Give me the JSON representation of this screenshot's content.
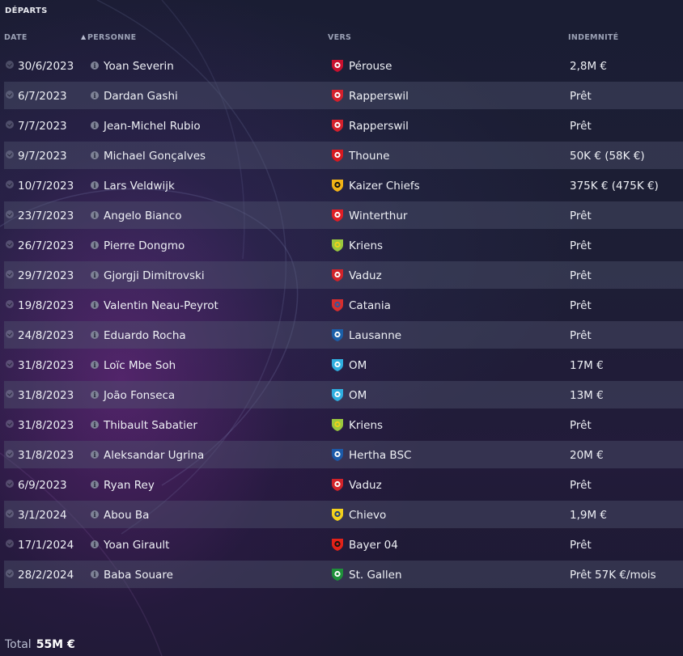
{
  "section_title": "DÉPARTS",
  "columns": {
    "date": "DATE",
    "person": "PERSONNE",
    "to": "VERS",
    "fee": "INDEMNITÉ"
  },
  "transfers": [
    {
      "date": "30/6/2023",
      "player": "Yoan Severin",
      "club": "Pérouse",
      "fee": "2,8M €",
      "crest_icon": "perugia-crest-icon",
      "crest_colors": [
        "#c8102e",
        "#ffffff"
      ]
    },
    {
      "date": "6/7/2023",
      "player": "Dardan Gashi",
      "club": "Rapperswil",
      "fee": "Prêt",
      "crest_icon": "rapperswil-crest-icon",
      "crest_colors": [
        "#d4202c",
        "#ffffff"
      ]
    },
    {
      "date": "7/7/2023",
      "player": "Jean-Michel Rubio",
      "club": "Rapperswil",
      "fee": "Prêt",
      "crest_icon": "rapperswil-crest-icon",
      "crest_colors": [
        "#d4202c",
        "#ffffff"
      ]
    },
    {
      "date": "9/7/2023",
      "player": "Michael Gonçalves",
      "club": "Thoune",
      "fee": "50K € (58K €)",
      "crest_icon": "thun-crest-icon",
      "crest_colors": [
        "#d71920",
        "#ffffff"
      ]
    },
    {
      "date": "10/7/2023",
      "player": "Lars Veldwijk",
      "club": "Kaizer Chiefs",
      "fee": "375K € (475K €)",
      "crest_icon": "kaizer-chiefs-crest-icon",
      "crest_colors": [
        "#f2b316",
        "#111111"
      ]
    },
    {
      "date": "23/7/2023",
      "player": "Angelo Bianco",
      "club": "Winterthur",
      "fee": "Prêt",
      "crest_icon": "winterthur-crest-icon",
      "crest_colors": [
        "#e01e26",
        "#ffffff"
      ]
    },
    {
      "date": "26/7/2023",
      "player": "Pierre Dongmo",
      "club": "Kriens",
      "fee": "Prêt",
      "crest_icon": "kriens-crest-icon",
      "crest_colors": [
        "#9ac73e",
        "#f1d21a"
      ]
    },
    {
      "date": "29/7/2023",
      "player": "Gjorgji Dimitrovski",
      "club": "Vaduz",
      "fee": "Prêt",
      "crest_icon": "vaduz-crest-icon",
      "crest_colors": [
        "#d2232a",
        "#ffffff"
      ]
    },
    {
      "date": "19/8/2023",
      "player": "Valentin Neau-Peyrot",
      "club": "Catania",
      "fee": "Prêt",
      "crest_icon": "catania-crest-icon",
      "crest_colors": [
        "#d62e2e",
        "#2c5aa0"
      ]
    },
    {
      "date": "24/8/2023",
      "player": "Eduardo Rocha",
      "club": "Lausanne",
      "fee": "Prêt",
      "crest_icon": "lausanne-crest-icon",
      "crest_colors": [
        "#1b5fa8",
        "#ffffff"
      ]
    },
    {
      "date": "31/8/2023",
      "player": "Loïc Mbe Soh",
      "club": "OM",
      "fee": "17M €",
      "crest_icon": "om-crest-icon",
      "crest_colors": [
        "#2faee0",
        "#ffffff"
      ]
    },
    {
      "date": "31/8/2023",
      "player": "João Fonseca",
      "club": "OM",
      "fee": "13M €",
      "crest_icon": "om-crest-icon",
      "crest_colors": [
        "#2faee0",
        "#ffffff"
      ]
    },
    {
      "date": "31/8/2023",
      "player": "Thibault Sabatier",
      "club": "Kriens",
      "fee": "Prêt",
      "crest_icon": "kriens-crest-icon",
      "crest_colors": [
        "#9ac73e",
        "#f1d21a"
      ]
    },
    {
      "date": "31/8/2023",
      "player": "Aleksandar Ugrina",
      "club": "Hertha BSC",
      "fee": "20M €",
      "crest_icon": "hertha-crest-icon",
      "crest_colors": [
        "#1c5aa8",
        "#ffffff"
      ]
    },
    {
      "date": "6/9/2023",
      "player": "Ryan Rey",
      "club": "Vaduz",
      "fee": "Prêt",
      "crest_icon": "vaduz-crest-icon",
      "crest_colors": [
        "#d2232a",
        "#ffffff"
      ]
    },
    {
      "date": "3/1/2024",
      "player": "Abou Ba",
      "club": "Chievo",
      "fee": "1,9M €",
      "crest_icon": "chievo-crest-icon",
      "crest_colors": [
        "#f3d01c",
        "#1d3f7a"
      ]
    },
    {
      "date": "17/1/2024",
      "player": "Yoan Girault",
      "club": "Bayer 04",
      "fee": "Prêt",
      "crest_icon": "bayer-crest-icon",
      "crest_colors": [
        "#e32219",
        "#111111"
      ]
    },
    {
      "date": "28/2/2024",
      "player": "Baba Souare",
      "club": "St. Gallen",
      "fee": "Prêt 57K €/mois",
      "crest_icon": "st-gallen-crest-icon",
      "crest_colors": [
        "#1f8f3a",
        "#ffffff"
      ]
    }
  ],
  "total": {
    "label": "Total",
    "value": "55M €"
  }
}
